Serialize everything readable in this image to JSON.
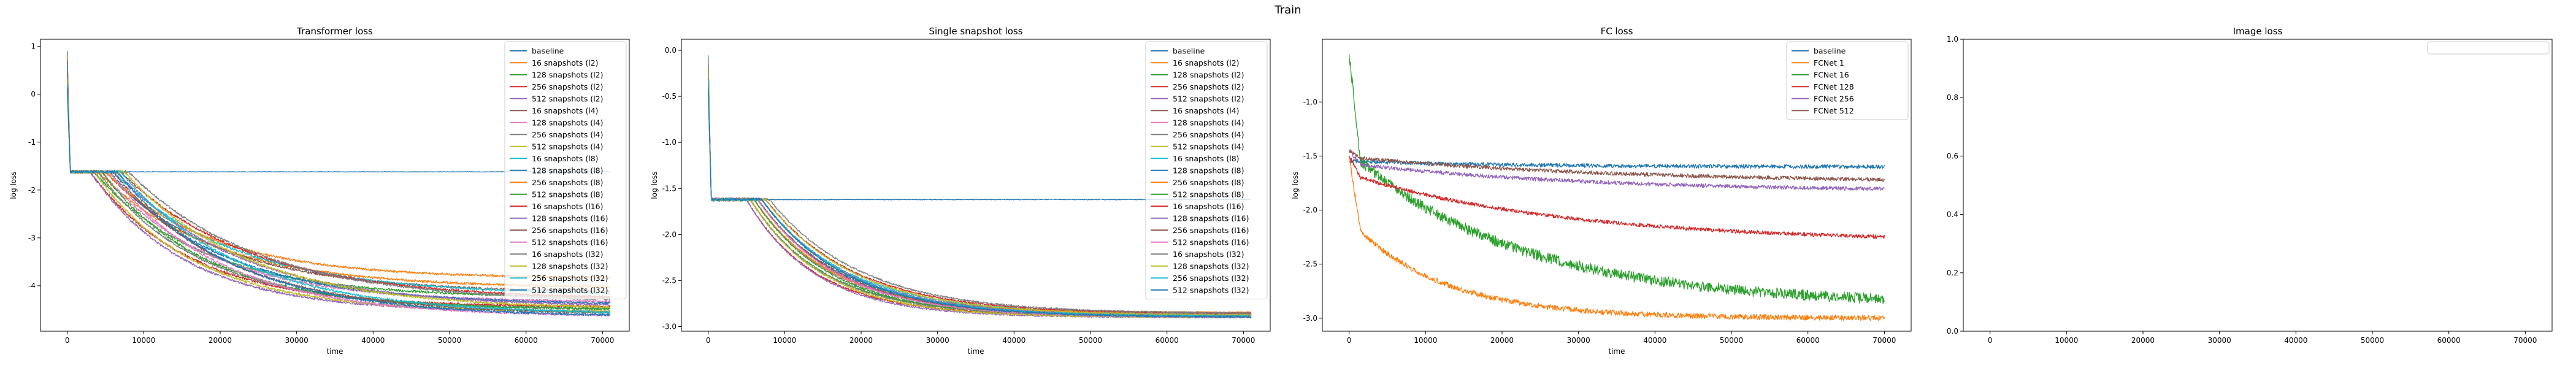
{
  "figure_title": "Train",
  "colors": {
    "tab10": [
      "#1f77b4",
      "#ff7f0e",
      "#2ca02c",
      "#d62728",
      "#9467bd",
      "#8c564b",
      "#e377c2",
      "#7f7f7f",
      "#bcbd22",
      "#17becf"
    ]
  },
  "chart_data": [
    {
      "type": "line",
      "title": "Transformer loss",
      "xlabel": "time",
      "ylabel": "log loss",
      "xlim": [
        -3500,
        73500
      ],
      "ylim": [
        -4.95,
        1.15
      ],
      "xticks": [
        0,
        10000,
        20000,
        30000,
        40000,
        50000,
        60000,
        70000
      ],
      "yticks": [
        1,
        0,
        -1,
        -2,
        -3,
        -4
      ],
      "legend": "top-right",
      "x_max": 71000,
      "series": [
        {
          "name": "baseline",
          "flat": true,
          "plateau": -1.62,
          "start": 0.9
        },
        {
          "name": "16 snapshots (l2)",
          "start": 0.8,
          "plateau": -1.62,
          "final": -4.05,
          "drop_x": 4000,
          "tau": 15000
        },
        {
          "name": "128 snapshots (l2)",
          "start": 0.6,
          "plateau": -1.62,
          "final": -4.25,
          "drop_x": 3500,
          "tau": 14000
        },
        {
          "name": "256 snapshots (l2)",
          "start": 0.5,
          "plateau": -1.62,
          "final": -4.45,
          "drop_x": 3000,
          "tau": 13000
        },
        {
          "name": "512 snapshots (l2)",
          "start": 0.4,
          "plateau": -1.62,
          "final": -4.55,
          "drop_x": 3000,
          "tau": 12500
        },
        {
          "name": "16 snapshots (l4)",
          "start": 0.7,
          "plateau": -1.62,
          "final": -4.15,
          "drop_x": 5000,
          "tau": 15000
        },
        {
          "name": "128 snapshots (l4)",
          "start": 0.5,
          "plateau": -1.62,
          "final": -4.35,
          "drop_x": 4500,
          "tau": 14000
        },
        {
          "name": "256 snapshots (l4)",
          "start": 0.3,
          "plateau": -1.62,
          "final": -4.5,
          "drop_x": 4000,
          "tau": 13500
        },
        {
          "name": "512 snapshots (l4)",
          "start": 0.2,
          "plateau": -1.62,
          "final": -4.55,
          "drop_x": 3500,
          "tau": 13000
        },
        {
          "name": "16 snapshots (l8)",
          "start": 0.6,
          "plateau": -1.62,
          "final": -4.2,
          "drop_x": 6000,
          "tau": 16000
        },
        {
          "name": "128 snapshots (l8)",
          "start": 0.4,
          "plateau": -1.62,
          "final": -4.4,
          "drop_x": 5500,
          "tau": 15000
        },
        {
          "name": "256 snapshots (l8)",
          "start": 0.3,
          "plateau": -1.62,
          "final": -3.85,
          "drop_x": 5000,
          "tau": 14000
        },
        {
          "name": "512 snapshots (l8)",
          "start": 0.2,
          "plateau": -1.62,
          "final": -4.5,
          "drop_x": 4500,
          "tau": 13500
        },
        {
          "name": "16 snapshots (l16)",
          "start": 0.5,
          "plateau": -1.62,
          "final": -4.3,
          "drop_x": 7000,
          "tau": 17000
        },
        {
          "name": "128 snapshots (l16)",
          "start": 0.4,
          "plateau": -1.62,
          "final": -4.45,
          "drop_x": 6500,
          "tau": 16000
        },
        {
          "name": "256 snapshots (l16)",
          "start": 0.2,
          "plateau": -1.62,
          "final": -4.6,
          "drop_x": 6000,
          "tau": 15000
        },
        {
          "name": "512 snapshots (l16)",
          "start": 0.1,
          "plateau": -1.62,
          "final": -4.65,
          "drop_x": 5500,
          "tau": 14500
        },
        {
          "name": "16 snapshots (l32)",
          "start": 0.5,
          "plateau": -1.62,
          "final": -4.35,
          "drop_x": 8000,
          "tau": 17000
        },
        {
          "name": "128 snapshots (l32)",
          "start": 0.3,
          "plateau": -1.62,
          "final": -4.5,
          "drop_x": 7500,
          "tau": 16000
        },
        {
          "name": "256 snapshots (l32)",
          "start": 0.2,
          "plateau": -1.62,
          "final": -4.6,
          "drop_x": 7000,
          "tau": 15500
        },
        {
          "name": "512 snapshots (l32)",
          "start": 0.1,
          "plateau": -1.62,
          "final": -4.65,
          "drop_x": 6500,
          "tau": 15000
        }
      ]
    },
    {
      "type": "line",
      "title": "Single snapshot loss",
      "xlabel": "time",
      "ylabel": "log loss",
      "xlim": [
        -3500,
        73500
      ],
      "ylim": [
        -3.05,
        0.12
      ],
      "xticks": [
        0,
        10000,
        20000,
        30000,
        40000,
        50000,
        60000,
        70000
      ],
      "yticks": [
        0.0,
        -0.5,
        -1.0,
        -1.5,
        -2.0,
        -2.5,
        -3.0
      ],
      "legend": "top-right",
      "x_max": 71000,
      "series": [
        {
          "name": "baseline",
          "flat": true,
          "plateau": -1.62,
          "start": -0.05
        },
        {
          "name": "16 snapshots (l2)",
          "start": -0.1,
          "plateau": -1.62,
          "final": -2.85,
          "drop_x": 6000,
          "tau": 10000
        },
        {
          "name": "128 snapshots (l2)",
          "start": -0.2,
          "plateau": -1.62,
          "final": -2.87,
          "drop_x": 5500,
          "tau": 9500
        },
        {
          "name": "256 snapshots (l2)",
          "start": -0.3,
          "plateau": -1.62,
          "final": -2.88,
          "drop_x": 5000,
          "tau": 9000
        },
        {
          "name": "512 snapshots (l2)",
          "start": -0.4,
          "plateau": -1.62,
          "final": -2.9,
          "drop_x": 5000,
          "tau": 9000
        },
        {
          "name": "16 snapshots (l4)",
          "start": -0.1,
          "plateau": -1.62,
          "final": -2.86,
          "drop_x": 6500,
          "tau": 10500
        },
        {
          "name": "128 snapshots (l4)",
          "start": -0.2,
          "plateau": -1.62,
          "final": -2.87,
          "drop_x": 6000,
          "tau": 10000
        },
        {
          "name": "256 snapshots (l4)",
          "start": -0.3,
          "plateau": -1.62,
          "final": -2.88,
          "drop_x": 5500,
          "tau": 9500
        },
        {
          "name": "512 snapshots (l4)",
          "start": -0.4,
          "plateau": -1.62,
          "final": -2.9,
          "drop_x": 5500,
          "tau": 9500
        },
        {
          "name": "16 snapshots (l8)",
          "start": -0.1,
          "plateau": -1.62,
          "final": -2.86,
          "drop_x": 7000,
          "tau": 11000
        },
        {
          "name": "128 snapshots (l8)",
          "start": -0.2,
          "plateau": -1.62,
          "final": -2.88,
          "drop_x": 6500,
          "tau": 10500
        },
        {
          "name": "256 snapshots (l8)",
          "start": -0.3,
          "plateau": -1.62,
          "final": -2.85,
          "drop_x": 6000,
          "tau": 10000
        },
        {
          "name": "512 snapshots (l8)",
          "start": -0.4,
          "plateau": -1.62,
          "final": -2.89,
          "drop_x": 6000,
          "tau": 10000
        },
        {
          "name": "16 snapshots (l16)",
          "start": -0.1,
          "plateau": -1.62,
          "final": -2.86,
          "drop_x": 7500,
          "tau": 11500
        },
        {
          "name": "128 snapshots (l16)",
          "start": -0.2,
          "plateau": -1.62,
          "final": -2.88,
          "drop_x": 7000,
          "tau": 11000
        },
        {
          "name": "256 snapshots (l16)",
          "start": -0.3,
          "plateau": -1.62,
          "final": -2.89,
          "drop_x": 6500,
          "tau": 10500
        },
        {
          "name": "512 snapshots (l16)",
          "start": -0.4,
          "plateau": -1.62,
          "final": -2.9,
          "drop_x": 6500,
          "tau": 10500
        },
        {
          "name": "16 snapshots (l32)",
          "start": -0.1,
          "plateau": -1.62,
          "final": -2.86,
          "drop_x": 8000,
          "tau": 12000
        },
        {
          "name": "128 snapshots (l32)",
          "start": -0.2,
          "plateau": -1.62,
          "final": -2.88,
          "drop_x": 7500,
          "tau": 11500
        },
        {
          "name": "256 snapshots (l32)",
          "start": -0.3,
          "plateau": -1.62,
          "final": -2.89,
          "drop_x": 7000,
          "tau": 11000
        },
        {
          "name": "512 snapshots (l32)",
          "start": -0.4,
          "plateau": -1.62,
          "final": -2.9,
          "drop_x": 7000,
          "tau": 11000
        }
      ]
    },
    {
      "type": "line",
      "title": "FC loss",
      "xlabel": "time",
      "ylabel": "log loss",
      "xlim": [
        -3500,
        73500
      ],
      "ylim": [
        -3.12,
        -0.42
      ],
      "xticks": [
        0,
        10000,
        20000,
        30000,
        40000,
        50000,
        60000,
        70000
      ],
      "yticks": [
        -1.0,
        -1.5,
        -2.0,
        -2.5,
        -3.0
      ],
      "legend": "top-right",
      "x_max": 70000,
      "series": [
        {
          "name": "baseline",
          "start": -1.55,
          "knee_x": 1500,
          "knee_y": -1.55,
          "final": -1.6,
          "tau": 20000
        },
        {
          "name": "FCNet 1",
          "start": -1.5,
          "knee_x": 1500,
          "knee_y": -2.2,
          "final": -3.0,
          "tau": 12000
        },
        {
          "name": "FCNet 16",
          "start": -0.55,
          "knee_x": 1500,
          "knee_y": -1.55,
          "final": -2.88,
          "tau": 22000
        },
        {
          "name": "FCNet 128",
          "start": -1.5,
          "knee_x": 1500,
          "knee_y": -1.7,
          "final": -2.3,
          "tau": 28000
        },
        {
          "name": "FCNet 256",
          "start": -1.45,
          "knee_x": 1500,
          "knee_y": -1.58,
          "final": -1.83,
          "tau": 30000
        },
        {
          "name": "FCNet 512",
          "start": -1.45,
          "knee_x": 1500,
          "knee_y": -1.52,
          "final": -1.75,
          "tau": 35000
        }
      ]
    },
    {
      "type": "line",
      "title": "Image loss",
      "xlabel": "",
      "ylabel": "",
      "xlim": [
        -3500,
        73500
      ],
      "ylim": [
        0.0,
        1.0
      ],
      "xticks": [
        0,
        10000,
        20000,
        30000,
        40000,
        50000,
        60000,
        70000
      ],
      "yticks": [
        0.0,
        0.2,
        0.4,
        0.6,
        0.8,
        1.0
      ],
      "legend": "top-right",
      "series": []
    }
  ]
}
